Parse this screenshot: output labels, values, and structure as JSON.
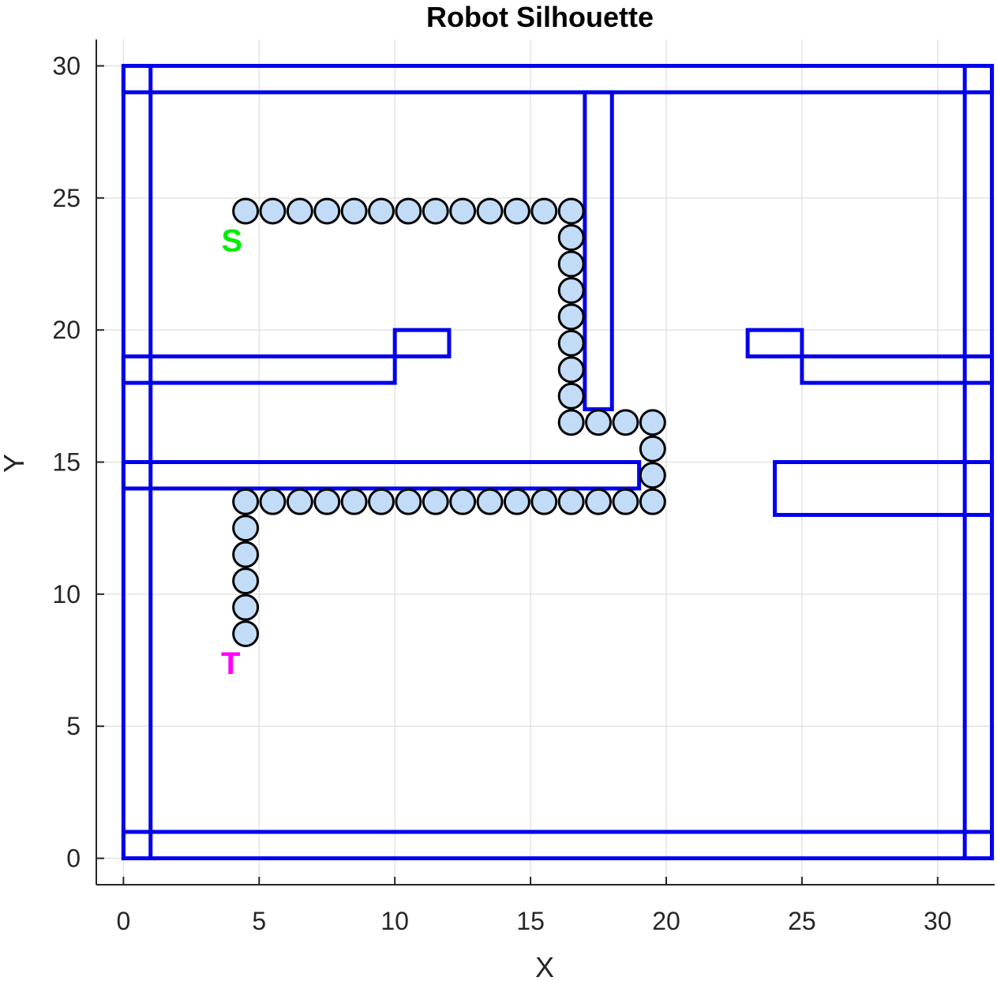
{
  "chart_data": {
    "type": "scatter",
    "title": "Robot Silhouette",
    "xlabel": "X",
    "ylabel": "Y",
    "xlim": [
      -1,
      32.1
    ],
    "ylim": [
      -1,
      31
    ],
    "xticks": [
      0,
      5,
      10,
      15,
      20,
      25,
      30
    ],
    "yticks": [
      0,
      5,
      10,
      15,
      20,
      25,
      30
    ],
    "grid": true,
    "colors": {
      "obstacle": "#0000ee",
      "robot_fill": "#c2dcf8",
      "robot_edge": "#000000",
      "grid": "#e3e3e3",
      "axis": "#262626",
      "start": "#00ee00",
      "target": "#ff00ff"
    },
    "obstacles": [
      [
        0,
        0,
        32,
        1
      ],
      [
        0,
        29,
        32,
        30
      ],
      [
        0,
        0,
        1,
        30
      ],
      [
        31,
        0,
        32,
        30
      ],
      [
        17,
        17,
        18,
        29
      ],
      [
        0,
        18,
        10,
        19
      ],
      [
        10,
        19,
        12,
        20
      ],
      [
        0,
        14,
        19,
        15
      ],
      [
        23,
        19,
        25,
        20
      ],
      [
        25,
        18,
        32,
        19
      ],
      [
        24,
        13,
        32,
        15
      ]
    ],
    "robot_radius": 0.45,
    "robot_path": [
      [
        4.5,
        24.5
      ],
      [
        5.5,
        24.5
      ],
      [
        6.5,
        24.5
      ],
      [
        7.5,
        24.5
      ],
      [
        8.5,
        24.5
      ],
      [
        9.5,
        24.5
      ],
      [
        10.5,
        24.5
      ],
      [
        11.5,
        24.5
      ],
      [
        12.5,
        24.5
      ],
      [
        13.5,
        24.5
      ],
      [
        14.5,
        24.5
      ],
      [
        15.5,
        24.5
      ],
      [
        16.5,
        24.5
      ],
      [
        16.5,
        23.5
      ],
      [
        16.5,
        22.5
      ],
      [
        16.5,
        21.5
      ],
      [
        16.5,
        20.5
      ],
      [
        16.5,
        19.5
      ],
      [
        16.5,
        18.5
      ],
      [
        16.5,
        17.5
      ],
      [
        16.5,
        16.5
      ],
      [
        17.5,
        16.5
      ],
      [
        18.5,
        16.5
      ],
      [
        19.5,
        16.5
      ],
      [
        19.5,
        15.5
      ],
      [
        19.5,
        14.5
      ],
      [
        19.5,
        13.5
      ],
      [
        18.5,
        13.5
      ],
      [
        17.5,
        13.5
      ],
      [
        16.5,
        13.5
      ],
      [
        15.5,
        13.5
      ],
      [
        14.5,
        13.5
      ],
      [
        13.5,
        13.5
      ],
      [
        12.5,
        13.5
      ],
      [
        11.5,
        13.5
      ],
      [
        10.5,
        13.5
      ],
      [
        9.5,
        13.5
      ],
      [
        8.5,
        13.5
      ],
      [
        7.5,
        13.5
      ],
      [
        6.5,
        13.5
      ],
      [
        5.5,
        13.5
      ],
      [
        4.5,
        13.5
      ],
      [
        4.5,
        12.5
      ],
      [
        4.5,
        11.5
      ],
      [
        4.5,
        10.5
      ],
      [
        4.5,
        9.5
      ],
      [
        4.5,
        8.5
      ]
    ],
    "annotations": [
      {
        "text": "S",
        "x": 4,
        "y": 23.4,
        "color": "start"
      },
      {
        "text": "T",
        "x": 3.95,
        "y": 7.4,
        "color": "target"
      }
    ]
  }
}
